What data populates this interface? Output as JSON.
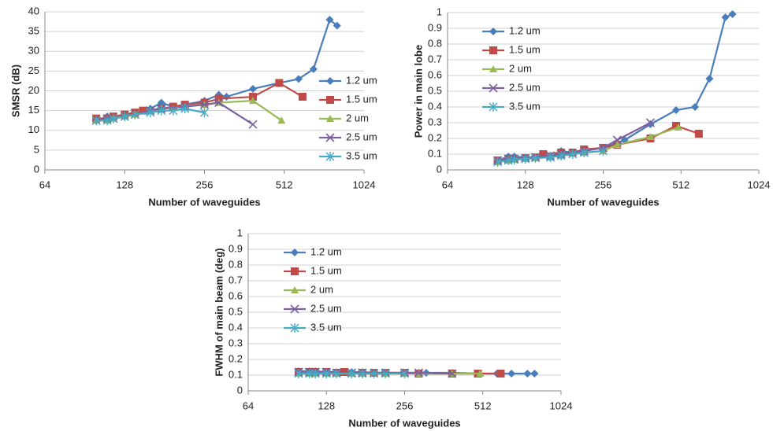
{
  "chart_data": [
    {
      "type": "line",
      "ylabel": "SMSR (dB)",
      "xlabel": "Number of waveguides",
      "log_x": true,
      "legend": "right",
      "xlim": [
        64,
        1024
      ],
      "xticks": [
        64,
        128,
        256,
        512,
        1024
      ],
      "ylim": [
        0,
        40
      ],
      "yticks": [
        0,
        5,
        10,
        15,
        20,
        25,
        30,
        35,
        40
      ],
      "grid": true,
      "series": [
        {
          "name": "1.2 um",
          "color": "#4a7ebb",
          "marker": "diamond",
          "x": [
            100,
            110,
            116,
            128,
            140,
            160,
            176,
            195,
            216,
            256,
            290,
            310,
            390,
            490,
            580,
            660,
            760,
            810
          ],
          "values": [
            12.5,
            13.5,
            13.5,
            14,
            14.5,
            15.5,
            17,
            16,
            16.5,
            17.5,
            19,
            18.5,
            20.5,
            22,
            23,
            25.5,
            38,
            36.5
          ]
        },
        {
          "name": "1.5 um",
          "color": "#be4b48",
          "marker": "square",
          "x": [
            100,
            110,
            116,
            128,
            140,
            150,
            176,
            195,
            216,
            256,
            290,
            390,
            490,
            600
          ],
          "values": [
            13,
            13,
            13.5,
            14,
            14.5,
            15,
            15.5,
            16,
            16.5,
            17,
            18,
            18.5,
            22,
            18.5
          ]
        },
        {
          "name": "2 um",
          "color": "#98b954",
          "marker": "triangle",
          "x": [
            100,
            110,
            116,
            128,
            140,
            160,
            176,
            216,
            256,
            290,
            390,
            500
          ],
          "values": [
            12.5,
            12.5,
            13,
            13.5,
            14,
            15,
            15.5,
            16,
            16.5,
            17,
            17.5,
            12.5
          ]
        },
        {
          "name": "2.5 um",
          "color": "#7d60a0",
          "marker": "cross",
          "x": [
            100,
            110,
            116,
            128,
            140,
            160,
            176,
            216,
            256,
            290,
            390
          ],
          "values": [
            12.5,
            13,
            13,
            13.5,
            14,
            15,
            15.5,
            16,
            16.5,
            17,
            11.5
          ]
        },
        {
          "name": "3.5 um",
          "color": "#46aac5",
          "marker": "star",
          "x": [
            100,
            110,
            116,
            128,
            140,
            160,
            176,
            195,
            216,
            256
          ],
          "values": [
            12.5,
            12.5,
            13,
            13.5,
            14,
            14.5,
            15,
            15,
            15.5,
            14.5
          ]
        }
      ]
    },
    {
      "type": "line",
      "ylabel": "Power in main lobe",
      "xlabel": "Number of waveguides",
      "log_x": true,
      "legend": "upper left",
      "xlim": [
        64,
        1024
      ],
      "xticks": [
        64,
        128,
        256,
        512,
        1024
      ],
      "ylim": [
        0,
        1
      ],
      "yticks": [
        0,
        0.1,
        0.2,
        0.3,
        0.4,
        0.5,
        0.6,
        0.7,
        0.8,
        0.9,
        1
      ],
      "grid": true,
      "series": [
        {
          "name": "1.2 um",
          "color": "#4a7ebb",
          "marker": "diamond",
          "x": [
            100,
            110,
            116,
            128,
            140,
            160,
            176,
            195,
            216,
            256,
            290,
            310,
            390,
            490,
            580,
            660,
            760,
            810
          ],
          "values": [
            0.06,
            0.085,
            0.085,
            0.08,
            0.08,
            0.09,
            0.12,
            0.11,
            0.13,
            0.14,
            0.17,
            0.19,
            0.29,
            0.38,
            0.4,
            0.58,
            0.97,
            0.99
          ]
        },
        {
          "name": "1.5 um",
          "color": "#be4b48",
          "marker": "square",
          "x": [
            100,
            110,
            116,
            128,
            140,
            150,
            176,
            195,
            216,
            256,
            290,
            390,
            490,
            600
          ],
          "values": [
            0.06,
            0.07,
            0.07,
            0.075,
            0.08,
            0.1,
            0.11,
            0.11,
            0.13,
            0.14,
            0.16,
            0.2,
            0.28,
            0.23
          ]
        },
        {
          "name": "2 um",
          "color": "#98b954",
          "marker": "triangle",
          "x": [
            100,
            110,
            116,
            128,
            140,
            160,
            176,
            216,
            256,
            290,
            390,
            500
          ],
          "values": [
            0.05,
            0.06,
            0.065,
            0.07,
            0.075,
            0.08,
            0.09,
            0.11,
            0.12,
            0.16,
            0.21,
            0.27
          ]
        },
        {
          "name": "2.5 um",
          "color": "#7d60a0",
          "marker": "cross",
          "x": [
            100,
            110,
            116,
            128,
            140,
            160,
            176,
            216,
            256,
            290,
            390
          ],
          "values": [
            0.06,
            0.07,
            0.07,
            0.075,
            0.08,
            0.09,
            0.1,
            0.12,
            0.14,
            0.19,
            0.3
          ]
        },
        {
          "name": "3.5 um",
          "color": "#46aac5",
          "marker": "star",
          "x": [
            100,
            110,
            116,
            128,
            140,
            160,
            176,
            195,
            216,
            256
          ],
          "values": [
            0.05,
            0.06,
            0.065,
            0.07,
            0.075,
            0.08,
            0.09,
            0.1,
            0.11,
            0.12
          ]
        }
      ]
    },
    {
      "type": "line",
      "ylabel": "FWHM of main beam (deg)",
      "xlabel": "Number of waveguides",
      "log_x": true,
      "legend": "upper left",
      "xlim": [
        64,
        1024
      ],
      "xticks": [
        64,
        128,
        256,
        512,
        1024
      ],
      "ylim": [
        0,
        1
      ],
      "yticks": [
        0,
        0.1,
        0.2,
        0.3,
        0.4,
        0.5,
        0.6,
        0.7,
        0.8,
        0.9,
        1
      ],
      "grid": true,
      "series": [
        {
          "name": "1.2 um",
          "color": "#4a7ebb",
          "marker": "diamond",
          "x": [
            100,
            110,
            116,
            128,
            140,
            160,
            176,
            195,
            216,
            256,
            290,
            310,
            390,
            490,
            580,
            660,
            760,
            810
          ],
          "values": [
            0.125,
            0.125,
            0.125,
            0.12,
            0.12,
            0.12,
            0.12,
            0.115,
            0.115,
            0.115,
            0.115,
            0.115,
            0.115,
            0.11,
            0.11,
            0.11,
            0.11,
            0.11
          ]
        },
        {
          "name": "1.5 um",
          "color": "#be4b48",
          "marker": "square",
          "x": [
            100,
            110,
            116,
            128,
            140,
            150,
            176,
            195,
            216,
            256,
            290,
            390,
            490,
            600
          ],
          "values": [
            0.12,
            0.12,
            0.12,
            0.12,
            0.115,
            0.12,
            0.115,
            0.115,
            0.115,
            0.115,
            0.11,
            0.11,
            0.11,
            0.11
          ]
        },
        {
          "name": "2 um",
          "color": "#98b954",
          "marker": "triangle",
          "x": [
            100,
            110,
            116,
            128,
            140,
            160,
            176,
            216,
            256,
            290,
            390,
            500
          ],
          "values": [
            0.11,
            0.11,
            0.11,
            0.11,
            0.11,
            0.11,
            0.11,
            0.11,
            0.11,
            0.11,
            0.11,
            0.11
          ]
        },
        {
          "name": "2.5 um",
          "color": "#7d60a0",
          "marker": "cross",
          "x": [
            100,
            110,
            116,
            128,
            140,
            160,
            176,
            216,
            256,
            290,
            390
          ],
          "values": [
            0.12,
            0.12,
            0.12,
            0.12,
            0.115,
            0.115,
            0.115,
            0.115,
            0.115,
            0.115,
            0.11
          ]
        },
        {
          "name": "3.5 um",
          "color": "#46aac5",
          "marker": "star",
          "x": [
            100,
            110,
            116,
            128,
            140,
            160,
            176,
            195,
            216,
            256
          ],
          "values": [
            0.11,
            0.11,
            0.11,
            0.11,
            0.11,
            0.11,
            0.11,
            0.11,
            0.11,
            0.11
          ]
        }
      ]
    }
  ]
}
